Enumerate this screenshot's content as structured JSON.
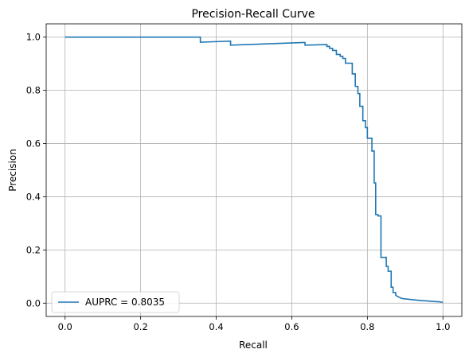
{
  "chart_data": {
    "type": "line",
    "title": "Precision-Recall Curve",
    "xlabel": "Recall",
    "ylabel": "Precision",
    "xlim": [
      -0.05,
      1.05
    ],
    "ylim": [
      -0.05,
      1.05
    ],
    "xticks": [
      0.0,
      0.2,
      0.4,
      0.6,
      0.8,
      1.0
    ],
    "xtick_labels": [
      "0.0",
      "0.2",
      "0.4",
      "0.6",
      "0.8",
      "1.0"
    ],
    "yticks": [
      0.0,
      0.2,
      0.4,
      0.6,
      0.8,
      1.0
    ],
    "ytick_labels": [
      "0.0",
      "0.2",
      "0.4",
      "0.6",
      "0.8",
      "1.0"
    ],
    "grid": true,
    "legend_position": "lower-left",
    "series": [
      {
        "name": "AUPRC = 0.8035",
        "color": "#1f77b4",
        "step": true,
        "points": [
          [
            0.0,
            1.0
          ],
          [
            0.358,
            1.0
          ],
          [
            0.358,
            0.981
          ],
          [
            0.438,
            0.985
          ],
          [
            0.438,
            0.97
          ],
          [
            0.635,
            0.98
          ],
          [
            0.635,
            0.97
          ],
          [
            0.693,
            0.972
          ],
          [
            0.693,
            0.965
          ],
          [
            0.7,
            0.965
          ],
          [
            0.7,
            0.958
          ],
          [
            0.708,
            0.958
          ],
          [
            0.708,
            0.95
          ],
          [
            0.718,
            0.95
          ],
          [
            0.718,
            0.935
          ],
          [
            0.728,
            0.935
          ],
          [
            0.728,
            0.928
          ],
          [
            0.735,
            0.928
          ],
          [
            0.735,
            0.92
          ],
          [
            0.742,
            0.92
          ],
          [
            0.742,
            0.902
          ],
          [
            0.76,
            0.902
          ],
          [
            0.76,
            0.862
          ],
          [
            0.768,
            0.862
          ],
          [
            0.768,
            0.815
          ],
          [
            0.775,
            0.815
          ],
          [
            0.775,
            0.788
          ],
          [
            0.78,
            0.788
          ],
          [
            0.78,
            0.74
          ],
          [
            0.788,
            0.74
          ],
          [
            0.788,
            0.686
          ],
          [
            0.795,
            0.686
          ],
          [
            0.795,
            0.66
          ],
          [
            0.8,
            0.66
          ],
          [
            0.8,
            0.62
          ],
          [
            0.812,
            0.62
          ],
          [
            0.812,
            0.572
          ],
          [
            0.818,
            0.572
          ],
          [
            0.818,
            0.452
          ],
          [
            0.822,
            0.452
          ],
          [
            0.822,
            0.333
          ],
          [
            0.828,
            0.333
          ],
          [
            0.828,
            0.328
          ],
          [
            0.836,
            0.328
          ],
          [
            0.836,
            0.172
          ],
          [
            0.85,
            0.172
          ],
          [
            0.85,
            0.138
          ],
          [
            0.855,
            0.138
          ],
          [
            0.855,
            0.12
          ],
          [
            0.863,
            0.12
          ],
          [
            0.863,
            0.06
          ],
          [
            0.868,
            0.06
          ],
          [
            0.868,
            0.04
          ],
          [
            0.875,
            0.04
          ],
          [
            0.875,
            0.03
          ],
          [
            0.88,
            0.025
          ],
          [
            0.885,
            0.022
          ],
          [
            0.89,
            0.018
          ],
          [
            0.9,
            0.016
          ],
          [
            0.92,
            0.013
          ],
          [
            0.94,
            0.01
          ],
          [
            0.96,
            0.008
          ],
          [
            0.98,
            0.006
          ],
          [
            0.99,
            0.005
          ],
          [
            1.0,
            0.003
          ]
        ]
      }
    ]
  }
}
